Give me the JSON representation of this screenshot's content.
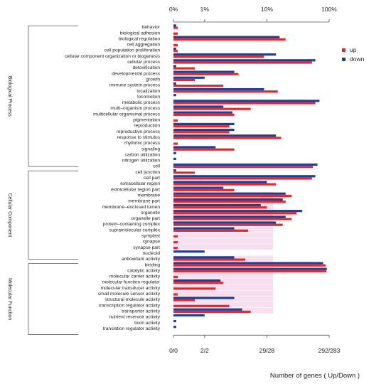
{
  "chart_data": {
    "type": "bar",
    "orientation": "horizontal",
    "scale": "log",
    "top_ticks": [
      "0%",
      "1%",
      "10%",
      "100%"
    ],
    "bottom_ticks": [
      "0/0",
      "2/2",
      "29/28",
      "292/283"
    ],
    "xlabel": "Number of genes ( Up/Down )",
    "legend": {
      "placement": "right",
      "entries": [
        {
          "name": "up",
          "color": "#e8262e"
        },
        {
          "name": "down",
          "color": "#1d3f96"
        }
      ]
    },
    "groups": [
      {
        "name": "Biological Process",
        "start": 0,
        "end": 24
      },
      {
        "name": "Cellular Component",
        "start": 25,
        "end": 40
      },
      {
        "name": "Molecular Function",
        "start": 41,
        "end": 53
      }
    ],
    "categories": [
      "behavior",
      "biological adhesion",
      "biological regulation",
      "cell aggregation",
      "cell population proliferation",
      "cellular component organization or biogenesis",
      "cellular process",
      "detoxification",
      "developmental process",
      "growth",
      "immune system process",
      "localization",
      "locomotion",
      "metabolic process",
      "multi–organism process",
      "multicellular organismal process",
      "pigmentation",
      "reproduction",
      "reproductive process",
      "response to stimulus",
      "rhythmic process",
      "signaling",
      "carbon utilization",
      "nitrogen utilization",
      "cell",
      "cell junction",
      "cell part",
      "extracellular region",
      "extracellular region part",
      "membrane",
      "membrane part",
      "membrane–enclosed lumen",
      "organelle",
      "organelle part",
      "protein–containing complex",
      "supramolecular complex",
      "symplast",
      "synapse",
      "synapse part",
      "nucleoid",
      "antioxidant activity",
      "binding",
      "catalytic activity",
      "molecular carrier activity",
      "molecular function regulator",
      "molecular transducer activity",
      "small molecule sensor activity",
      "structural molecule activity",
      "transcription regulator activity",
      "transporter activity",
      "nutrient reservoir activity",
      "toxin activity",
      "translation regulator activity"
    ],
    "series": [
      {
        "name": "up",
        "values": [
          0.37,
          0.37,
          20,
          0.37,
          0.37,
          9,
          53,
          0.7,
          3.5,
          0.7,
          2,
          15,
          0,
          60,
          5.5,
          3,
          0.37,
          2.5,
          2.5,
          17,
          0.37,
          3,
          0,
          0,
          55,
          0.7,
          53,
          14,
          3,
          25,
          20,
          10,
          30,
          25,
          18,
          5,
          0.37,
          0.37,
          0.37,
          0,
          4.5,
          88,
          90,
          0.37,
          2,
          1.5,
          0.37,
          0.7,
          2.5,
          5.5,
          0,
          0,
          0
        ],
        "color": "#e8262e"
      },
      {
        "name": "down",
        "values": [
          0.35,
          0,
          16,
          0,
          0.35,
          14,
          60,
          0.35,
          3,
          1,
          0.35,
          9,
          0.35,
          70,
          2,
          2.8,
          0,
          3,
          3,
          14,
          0,
          1.5,
          0.35,
          0.35,
          65,
          0.35,
          60,
          10,
          2,
          20,
          18,
          8,
          37,
          20,
          14,
          3,
          0,
          0,
          0,
          1,
          3,
          80,
          92,
          0,
          1.8,
          0,
          0,
          3,
          0,
          4,
          1,
          0.35,
          0.35
        ]
      }
    ],
    "highlight_color": "#f7dff0",
    "highlight_rows": [
      29,
      30,
      31,
      32,
      33,
      34,
      35,
      36,
      37,
      38,
      40,
      41,
      42,
      43,
      44,
      45,
      46,
      47,
      48,
      49
    ]
  }
}
